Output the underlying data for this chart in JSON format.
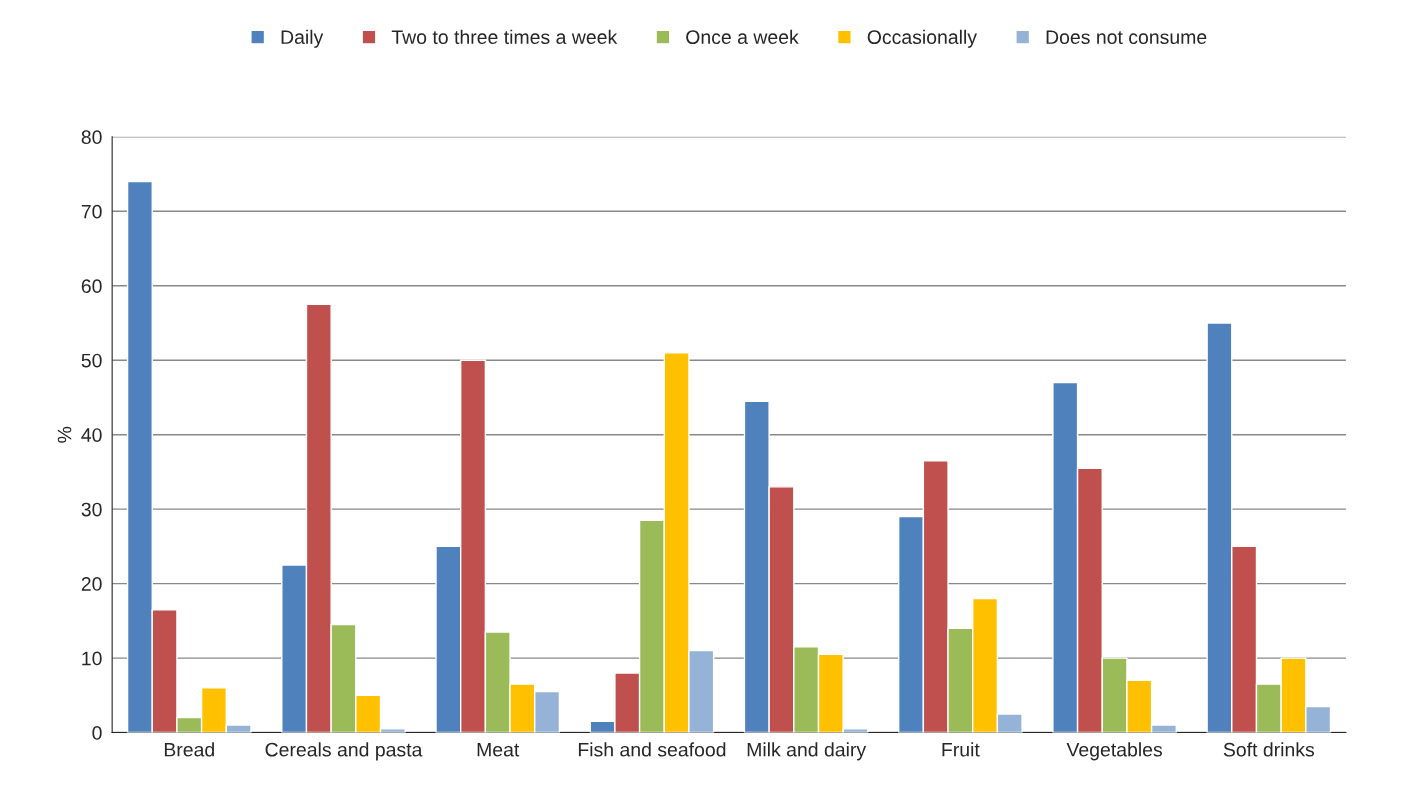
{
  "chart_data": {
    "type": "bar",
    "ylabel": "%",
    "categories": [
      "Bread",
      "Cereals and pasta",
      "Meat",
      "Fish and seafood",
      "Milk and dairy",
      "Fruit",
      "Vegetables",
      "Soft drinks"
    ],
    "series": [
      {
        "name": "Daily",
        "color": "#4f81bd",
        "values": [
          74,
          22.5,
          25,
          1.5,
          44.5,
          29,
          47,
          55
        ]
      },
      {
        "name": "Two to three times a week",
        "color": "#c0504d",
        "values": [
          16.5,
          57.5,
          50,
          8,
          33,
          36.5,
          35.5,
          25
        ]
      },
      {
        "name": "Once a week",
        "color": "#9bbb59",
        "values": [
          2,
          14.5,
          13.5,
          28.5,
          11.5,
          14,
          10,
          6.5
        ]
      },
      {
        "name": "Occasionally",
        "color": "#ffc000",
        "values": [
          6,
          5,
          6.5,
          51,
          10.5,
          18,
          7,
          10
        ]
      },
      {
        "name": "Does not consume",
        "color": "#95b3d7",
        "values": [
          1,
          0.5,
          5.5,
          11,
          0.5,
          2.5,
          1,
          3.5
        ]
      }
    ],
    "ylim": [
      0,
      80
    ],
    "yticks": [
      0,
      10,
      20,
      30,
      40,
      50,
      60,
      70,
      80
    ],
    "grid": "y",
    "legend": "top"
  }
}
